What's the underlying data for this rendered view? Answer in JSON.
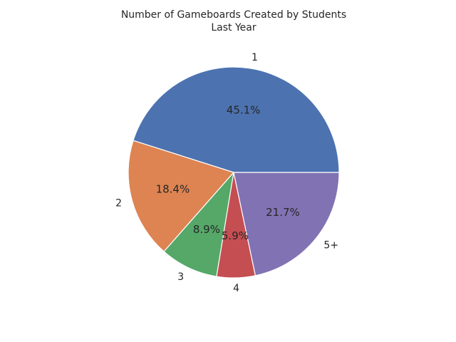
{
  "chart_data": {
    "type": "pie",
    "title_lines": [
      "Number of Gameboards Created by Students",
      "Last Year"
    ],
    "categories": [
      "1",
      "2",
      "3",
      "4",
      "5+"
    ],
    "values": [
      45.1,
      18.4,
      8.9,
      5.9,
      21.7
    ],
    "percent_labels": [
      "45.1%",
      "18.4%",
      "8.9%",
      "5.9%",
      "21.7%"
    ],
    "colors": [
      "#4c72b0",
      "#dd8452",
      "#55a868",
      "#c44e52",
      "#8172b3"
    ],
    "start_angle_deg": 0,
    "direction": "counterclockwise"
  }
}
